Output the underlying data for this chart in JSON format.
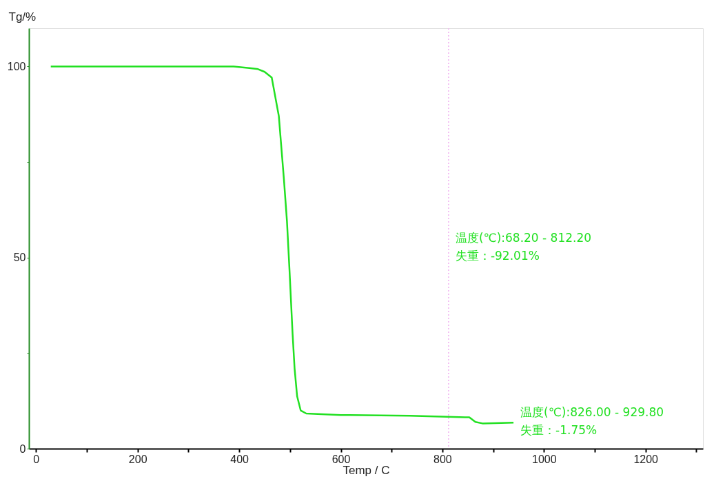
{
  "chart_data": {
    "type": "line",
    "xlabel": "Temp / C",
    "ylabel": "Tg/%",
    "x": [
      29,
      150,
      300,
      389,
      420,
      437,
      450,
      464,
      478,
      488,
      494,
      499,
      505,
      509,
      514,
      521,
      532,
      600,
      736,
      845,
      853,
      865,
      879,
      940
    ],
    "series": [
      {
        "color": "#22e022",
        "values": [
          100,
          100,
          100,
          100,
          99.6,
          99.3,
          98.6,
          97.1,
          87,
          70.5,
          59.5,
          46.7,
          30.2,
          21,
          13.7,
          10,
          9.2,
          8.8,
          8.6,
          8.2,
          8.2,
          7,
          6.6,
          6.8
        ]
      }
    ],
    "xlim": [
      -14,
      1313
    ],
    "ylim": [
      0,
      110
    ],
    "xticks": [
      0,
      {
        "value": 100,
        "label": null
      },
      200,
      {
        "value": 300,
        "label": null
      },
      400,
      {
        "value": 500,
        "label": null
      },
      600,
      {
        "value": 700,
        "label": null
      },
      800,
      {
        "value": 900,
        "label": null
      },
      1000,
      {
        "value": 1100,
        "label": null
      },
      1200,
      {
        "value": 1300,
        "label": null
      }
    ],
    "yticks": [
      0,
      {
        "value": 25,
        "label": null
      },
      50,
      {
        "value": 75,
        "label": null
      },
      100
    ],
    "ref_lines": [
      {
        "axis": "x",
        "value": 812.2,
        "color": "#f0b0f0",
        "line_style": "dotted"
      }
    ],
    "annotations": [
      "温度(℃):68.20 - 812.20",
      "失重：-92.01%",
      "温度(℃):826.00 - 929.80",
      "失重：-1.75%"
    ],
    "grid": false,
    "marker": "none",
    "line_style": "solid"
  }
}
